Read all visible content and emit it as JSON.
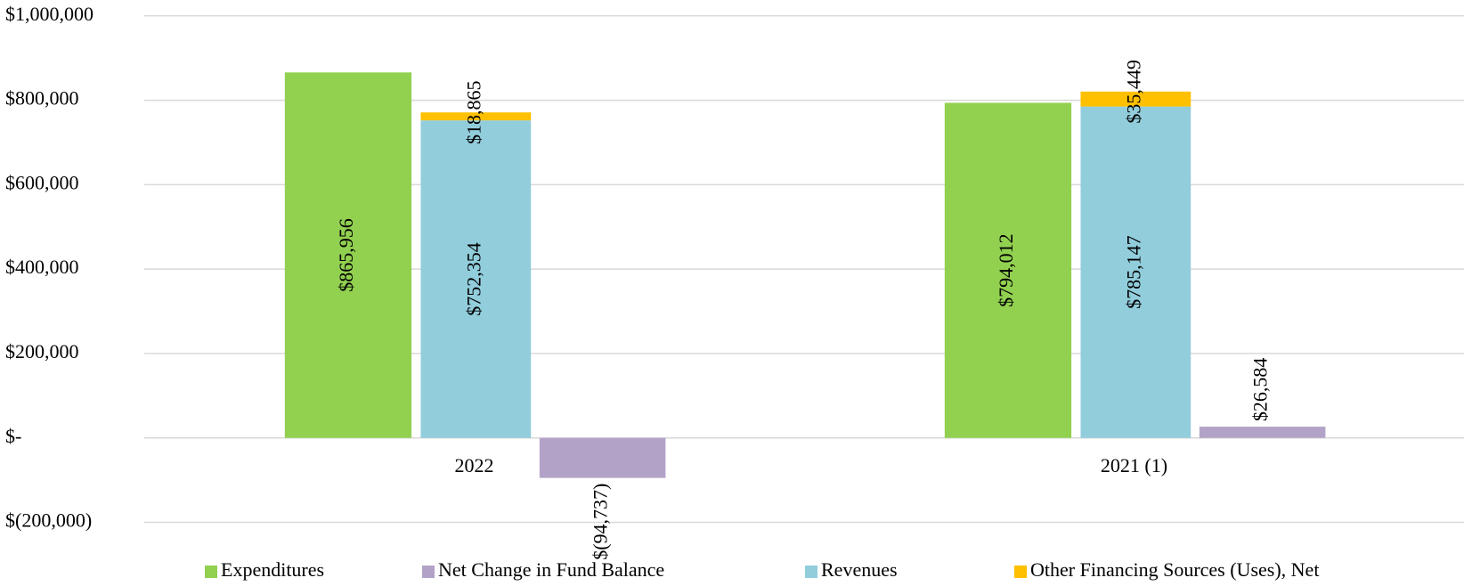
{
  "chart_data": {
    "type": "bar",
    "categories": [
      "2022",
      "2021 (1)"
    ],
    "series": [
      {
        "name": "Expenditures",
        "color": "#92d050",
        "values": [
          865956,
          794012
        ],
        "value_labels": [
          "$865,956",
          "$794,012"
        ]
      },
      {
        "name": "Net Change in Fund Balance",
        "color": "#b3a2c7",
        "values": [
          -94737,
          26584
        ],
        "value_labels": [
          "$(94,737)",
          "$26,584"
        ]
      },
      {
        "name": "Revenues",
        "color": "#92cddc",
        "values": [
          752354,
          785147
        ],
        "value_labels": [
          "$752,354",
          "$785,147"
        ]
      },
      {
        "name": "Other Financing Sources (Uses), Net",
        "color": "#ffc000",
        "values": [
          18865,
          35449
        ],
        "value_labels": [
          "$18,865",
          "$35,449"
        ],
        "stack_on": "Revenues"
      }
    ],
    "ylim": [
      -200000,
      1000000
    ],
    "yticks": [
      {
        "value": -200000,
        "label": "$(200,000)"
      },
      {
        "value": 0,
        "label": "$-"
      },
      {
        "value": 200000,
        "label": "$200,000"
      },
      {
        "value": 400000,
        "label": "$400,000"
      },
      {
        "value": 600000,
        "label": "$600,000"
      },
      {
        "value": 800000,
        "label": "$800,000"
      },
      {
        "value": 1000000,
        "label": "$1,000,000"
      }
    ],
    "grid": true,
    "legend": "bottom"
  }
}
